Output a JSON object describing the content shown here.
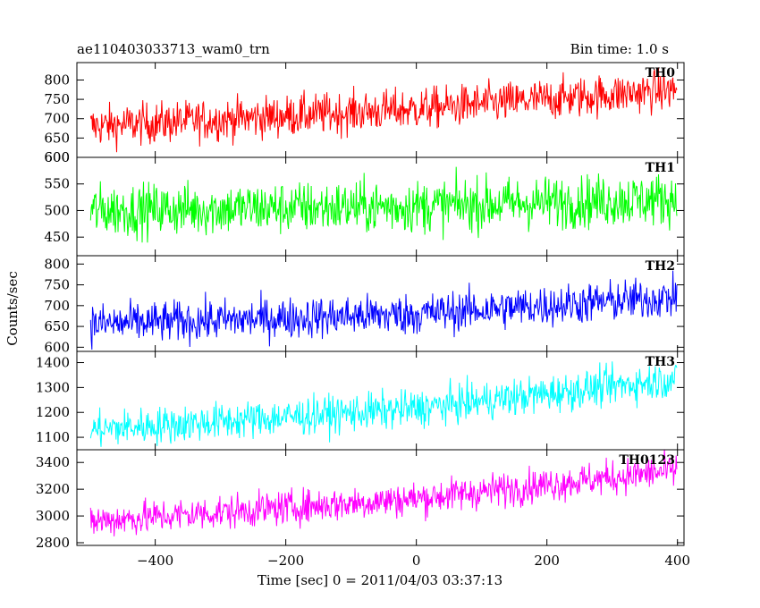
{
  "header": {
    "title": "ae110403033713_wam0_trn",
    "bin_time": "Bin time: 1.0 s"
  },
  "chart_data": {
    "type": "line",
    "xlabel": "Time [sec] 0 = 2011/04/03 03:37:13",
    "ylabel": "Counts/sec",
    "xlim": [
      -520,
      410
    ],
    "x_ticks": [
      -400,
      -200,
      0,
      200,
      400
    ],
    "x_tick_labels": [
      "−400",
      "−200",
      "0",
      "200",
      "400"
    ],
    "data_x_range": [
      -499,
      399
    ],
    "panels": [
      {
        "name": "TH0",
        "color": "#ff0000",
        "ylim": [
          600,
          845
        ],
        "yticks": [
          600,
          650,
          700,
          750,
          800
        ],
        "ytick_labels": [
          "600",
          "650",
          "700",
          "750",
          "800"
        ],
        "trend": [
          {
            "x": -499,
            "y": 680
          },
          {
            "x": 0,
            "y": 725
          },
          {
            "x": 399,
            "y": 775
          }
        ],
        "noise": 27
      },
      {
        "name": "TH1",
        "color": "#00ff00",
        "ylim": [
          415,
          600
        ],
        "yticks": [
          450,
          500,
          550,
          600
        ],
        "ytick_labels": [
          "450",
          "500",
          "550",
          "600"
        ],
        "trend": [
          {
            "x": -499,
            "y": 500
          },
          {
            "x": 0,
            "y": 508
          },
          {
            "x": 399,
            "y": 522
          }
        ],
        "noise": 25
      },
      {
        "name": "TH2",
        "color": "#0000ff",
        "ylim": [
          590,
          820
        ],
        "yticks": [
          600,
          650,
          700,
          750,
          800
        ],
        "ytick_labels": [
          "600",
          "650",
          "700",
          "750",
          "800"
        ],
        "trend": [
          {
            "x": -499,
            "y": 655
          },
          {
            "x": 0,
            "y": 680
          },
          {
            "x": 399,
            "y": 720
          }
        ],
        "noise": 25
      },
      {
        "name": "TH3",
        "color": "#00ffff",
        "ylim": [
          1050,
          1445
        ],
        "yticks": [
          1100,
          1200,
          1300,
          1400
        ],
        "ytick_labels": [
          "1100",
          "1200",
          "1300",
          "1400"
        ],
        "trend": [
          {
            "x": -499,
            "y": 1130
          },
          {
            "x": 0,
            "y": 1215
          },
          {
            "x": 399,
            "y": 1335
          }
        ],
        "noise": 38
      },
      {
        "name": "TH0123",
        "color": "#ff00ff",
        "ylim": [
          2780,
          3495
        ],
        "yticks": [
          2800,
          3000,
          3200,
          3400
        ],
        "ytick_labels": [
          "2800",
          "3000",
          "3200",
          "3400"
        ],
        "trend": [
          {
            "x": -499,
            "y": 2960
          },
          {
            "x": 0,
            "y": 3130
          },
          {
            "x": 399,
            "y": 3340
          }
        ],
        "noise": 65
      }
    ]
  }
}
